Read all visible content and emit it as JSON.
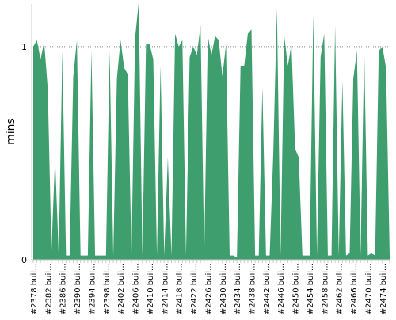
{
  "chart_data": {
    "type": "area",
    "title": "",
    "xlabel": "",
    "ylabel": "mins",
    "ylim": [
      0,
      1.2
    ],
    "y_ticks": [
      0,
      1
    ],
    "reference_line": 1,
    "grid": false,
    "legend": "none",
    "x_tick_labels": [
      "#2378 buil…",
      "#2382 buil…",
      "#2386 buil…",
      "#2390 buil…",
      "#2394 buil…",
      "#2398 buil…",
      "#2402 buil…",
      "#2406 buil…",
      "#2410 buil…",
      "#2414 buil…",
      "#2418 buil…",
      "#2422 buil…",
      "#2426 buil…",
      "#2430 buil…",
      "#2434 buil…",
      "#2438 buil…",
      "#2442 buil…",
      "#2446 buil…",
      "#2450 buil…",
      "#2454 buil…",
      "#2458 buil…",
      "#2462 buil…",
      "#2466 buil…",
      "#2470 buil…",
      "#2474 buil…"
    ],
    "builds": [
      2378,
      2379,
      2380,
      2381,
      2382,
      2383,
      2384,
      2385,
      2386,
      2387,
      2388,
      2389,
      2390,
      2391,
      2392,
      2393,
      2394,
      2395,
      2396,
      2397,
      2398,
      2399,
      2400,
      2401,
      2402,
      2403,
      2404,
      2405,
      2406,
      2407,
      2408,
      2409,
      2410,
      2411,
      2412,
      2413,
      2414,
      2415,
      2416,
      2417,
      2418,
      2419,
      2420,
      2421,
      2422,
      2423,
      2424,
      2425,
      2426,
      2427,
      2428,
      2429,
      2430,
      2431,
      2432,
      2433,
      2434,
      2435,
      2436,
      2437,
      2438,
      2439,
      2440,
      2441,
      2442,
      2443,
      2444,
      2445,
      2446,
      2447,
      2448,
      2449,
      2450,
      2451,
      2452,
      2453,
      2454,
      2455,
      2456,
      2457,
      2458,
      2459,
      2460,
      2461,
      2462,
      2463,
      2464,
      2465,
      2466,
      2467,
      2468,
      2469,
      2470,
      2471,
      2472,
      2473,
      2474,
      2475,
      2476
    ],
    "values": [
      1.0,
      1.03,
      0.94,
      1.02,
      0.8,
      0.04,
      0.48,
      0.02,
      0.98,
      0.02,
      0.02,
      0.86,
      1.03,
      0.02,
      0.02,
      0.02,
      0.98,
      0.02,
      0.02,
      0.02,
      0.02,
      0.98,
      0.02,
      0.85,
      1.03,
      0.9,
      0.87,
      0.02,
      1.04,
      1.21,
      0.02,
      1.01,
      1.01,
      0.94,
      0.02,
      0.91,
      0.02,
      0.48,
      0.02,
      1.06,
      1.0,
      1.03,
      0.02,
      0.95,
      1.0,
      0.96,
      1.1,
      0.02,
      1.05,
      0.96,
      1.05,
      1.03,
      0.86,
      1.01,
      0.02,
      0.02,
      0.01,
      0.91,
      0.91,
      1.06,
      1.08,
      0.02,
      0.02,
      0.81,
      0.02,
      0.02,
      0.5,
      1.18,
      0.02,
      1.05,
      0.91,
      1.01,
      0.52,
      0.48,
      0.02,
      0.02,
      0.02,
      1.15,
      0.02,
      0.95,
      1.06,
      0.02,
      0.02,
      1.1,
      0.02,
      0.84,
      0.02,
      0.03,
      0.85,
      0.98,
      0.02,
      0.99,
      0.02,
      0.03,
      0.02,
      0.98,
      1.0,
      0.9,
      0.02
    ],
    "fill_color": "#3f9e6e",
    "reference_line_color": "#888888",
    "axis_color": "#cccccc",
    "text_color": "#000000"
  }
}
